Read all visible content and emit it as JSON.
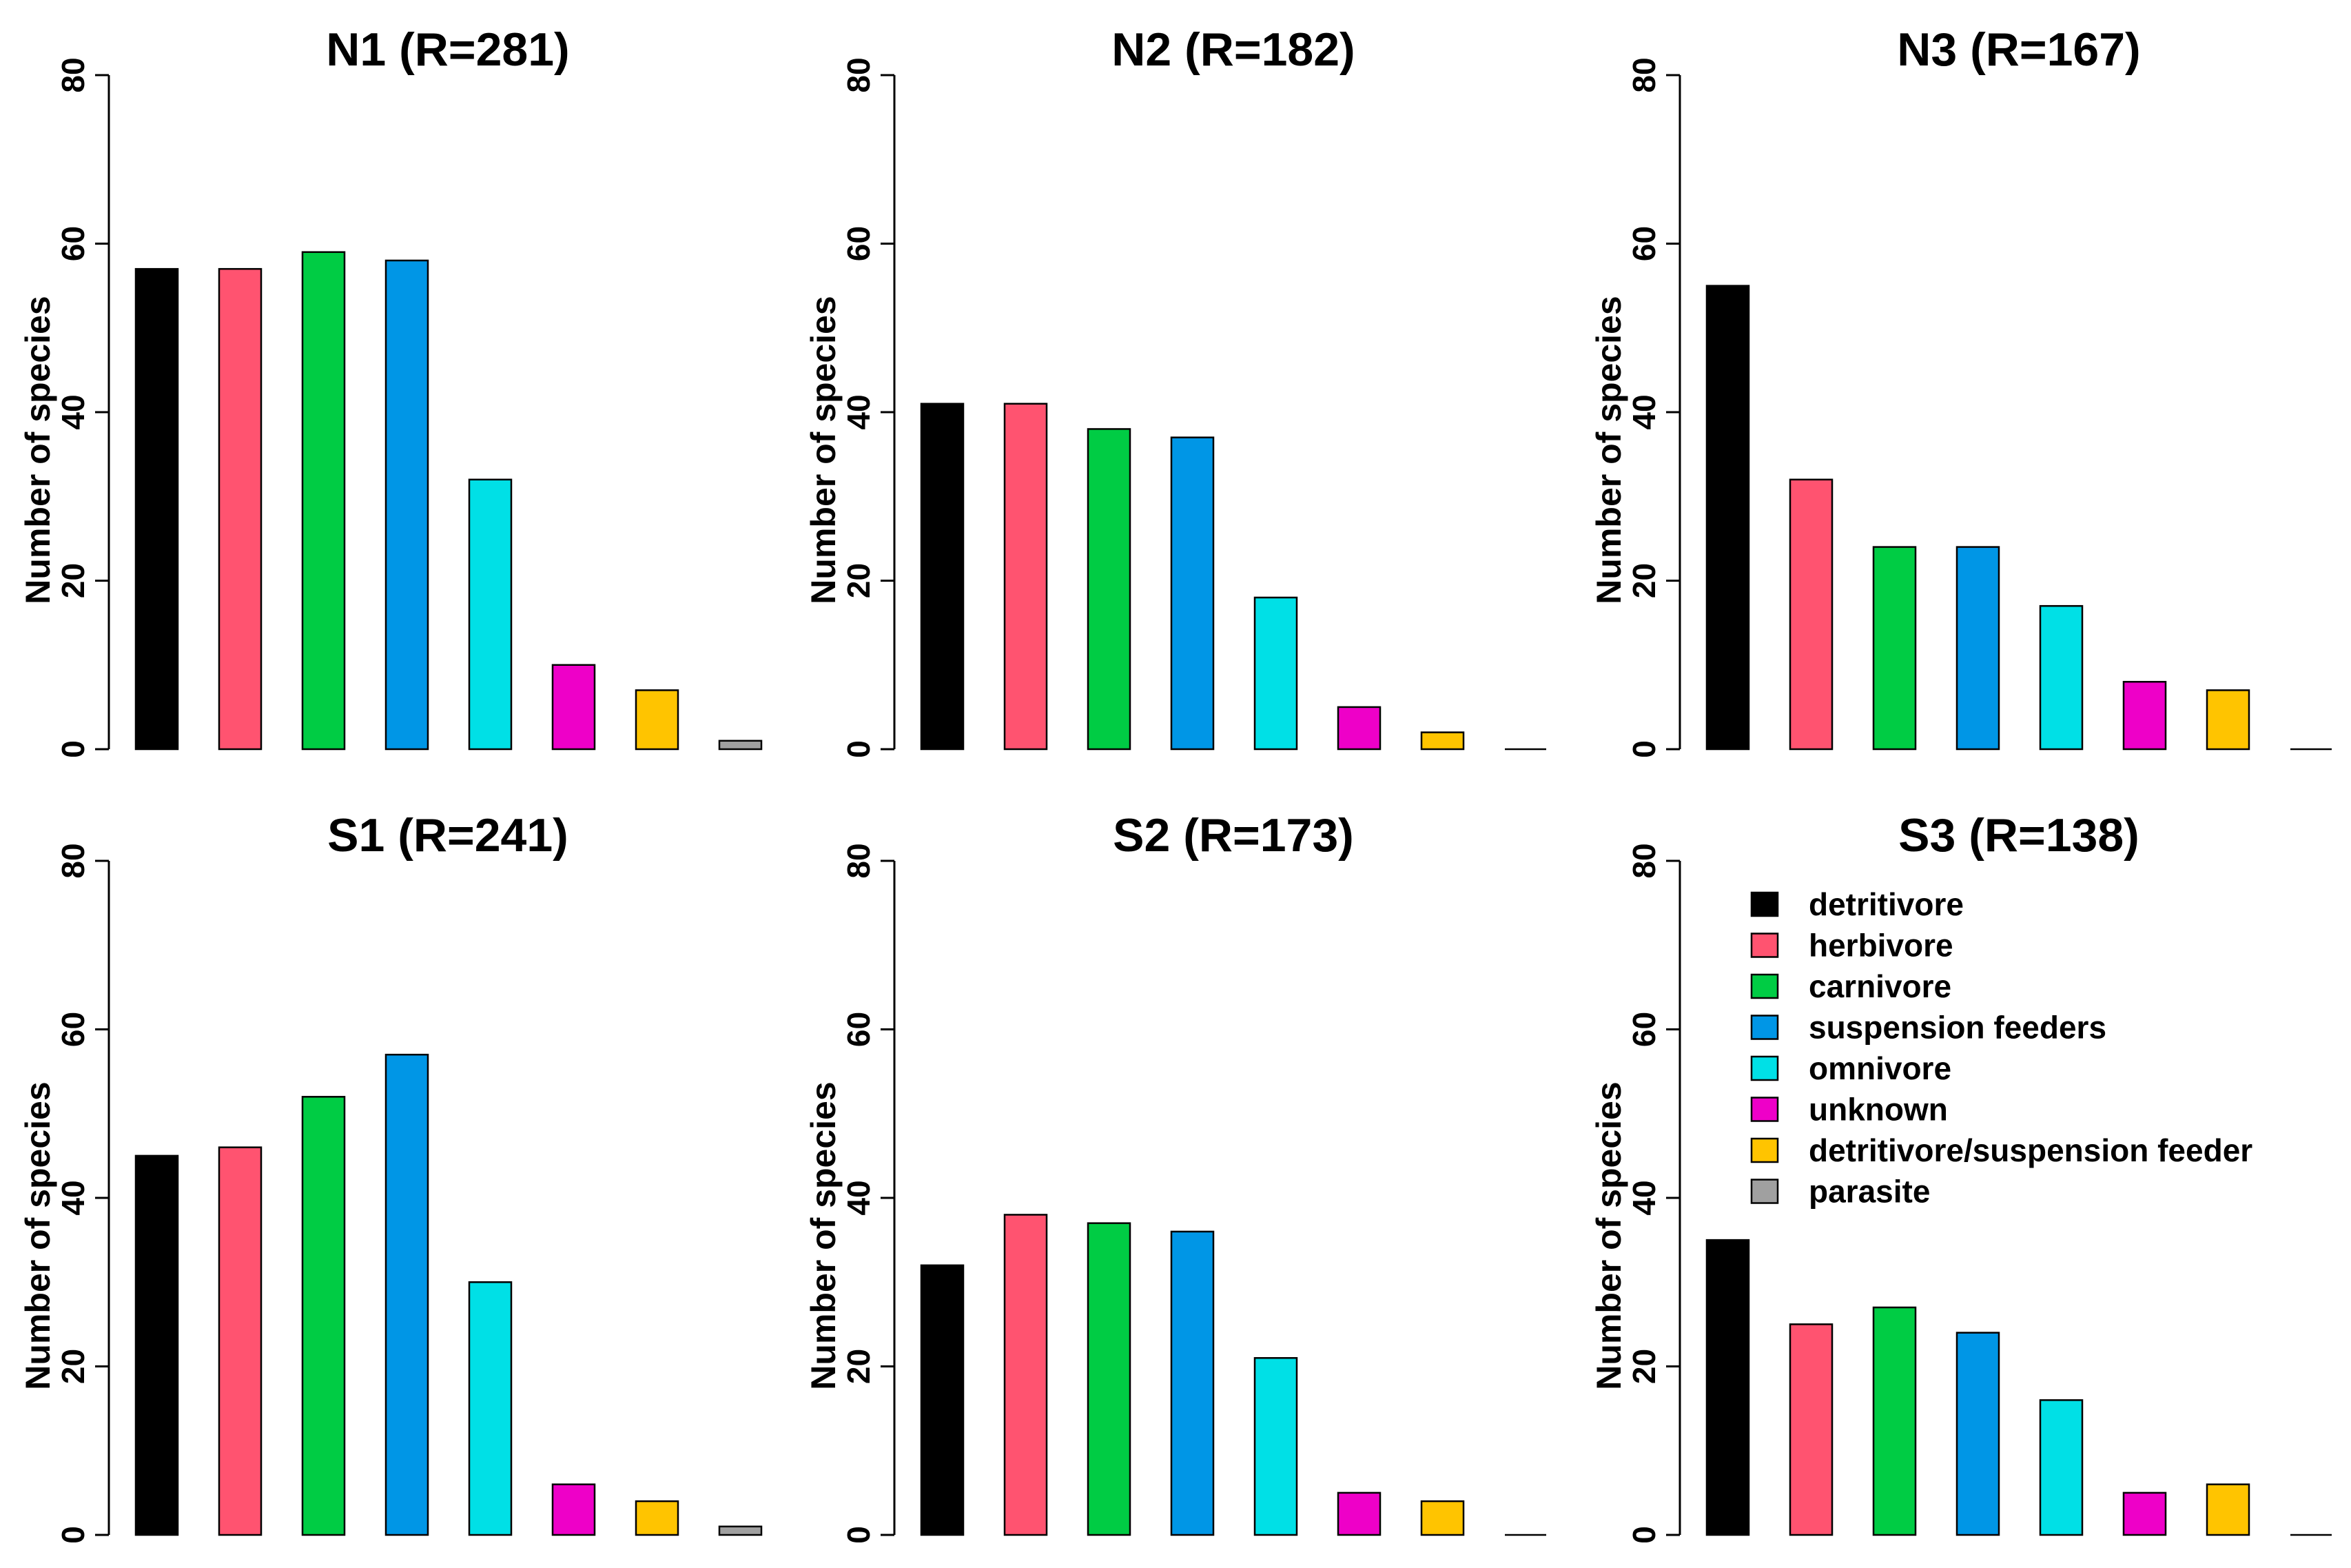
{
  "categories": [
    "detritivore",
    "herbivore",
    "carnivore",
    "suspension feeders",
    "omnivore",
    "unknown",
    "detritivore/suspension feeder",
    "parasite"
  ],
  "colors": [
    "#000000",
    "#FF5370",
    "#00CC44",
    "#0096E6",
    "#00E0E6",
    "#EE00C8",
    "#FFC400",
    "#A0A0A0"
  ],
  "chart_data": [
    {
      "type": "bar",
      "title": "N1 (R=281)",
      "ylabel": "Number of species",
      "ylim": [
        0,
        80
      ],
      "yticks": [
        "0",
        "20",
        "40",
        "60",
        "80"
      ],
      "categories": [
        "detritivore",
        "herbivore",
        "carnivore",
        "suspension feeders",
        "omnivore",
        "unknown",
        "detritivore/suspension feeder",
        "parasite"
      ],
      "values": [
        57,
        57,
        59,
        58,
        32,
        10,
        7,
        1
      ]
    },
    {
      "type": "bar",
      "title": "N2 (R=182)",
      "ylabel": "Number of species",
      "ylim": [
        0,
        80
      ],
      "yticks": [
        "0",
        "20",
        "40",
        "60",
        "80"
      ],
      "categories": [
        "detritivore",
        "herbivore",
        "carnivore",
        "suspension feeders",
        "omnivore",
        "unknown",
        "detritivore/suspension feeder",
        "parasite"
      ],
      "values": [
        41,
        41,
        38,
        37,
        18,
        5,
        2,
        0
      ]
    },
    {
      "type": "bar",
      "title": "N3 (R=167)",
      "ylabel": "Number of species",
      "ylim": [
        0,
        80
      ],
      "yticks": [
        "0",
        "20",
        "40",
        "60",
        "80"
      ],
      "categories": [
        "detritivore",
        "herbivore",
        "carnivore",
        "suspension feeders",
        "omnivore",
        "unknown",
        "detritivore/suspension feeder",
        "parasite"
      ],
      "values": [
        55,
        32,
        24,
        24,
        17,
        8,
        7,
        0
      ]
    },
    {
      "type": "bar",
      "title": "S1 (R=241)",
      "ylabel": "Number of species",
      "ylim": [
        0,
        80
      ],
      "yticks": [
        "0",
        "20",
        "40",
        "60",
        "80"
      ],
      "categories": [
        "detritivore",
        "herbivore",
        "carnivore",
        "suspension feeders",
        "omnivore",
        "unknown",
        "detritivore/suspension feeder",
        "parasite"
      ],
      "values": [
        45,
        46,
        52,
        57,
        30,
        6,
        4,
        1
      ]
    },
    {
      "type": "bar",
      "title": "S2 (R=173)",
      "ylabel": "Number of species",
      "ylim": [
        0,
        80
      ],
      "yticks": [
        "0",
        "20",
        "40",
        "60",
        "80"
      ],
      "categories": [
        "detritivore",
        "herbivore",
        "carnivore",
        "suspension feeders",
        "omnivore",
        "unknown",
        "detritivore/suspension feeder",
        "parasite"
      ],
      "values": [
        32,
        38,
        37,
        36,
        21,
        5,
        4,
        0
      ]
    },
    {
      "type": "bar",
      "title": "S3 (R=138)",
      "ylabel": "Number of species",
      "ylim": [
        0,
        80
      ],
      "yticks": [
        "0",
        "20",
        "40",
        "60",
        "80"
      ],
      "categories": [
        "detritivore",
        "herbivore",
        "carnivore",
        "suspension feeders",
        "omnivore",
        "unknown",
        "detritivore/suspension feeder",
        "parasite"
      ],
      "values": [
        35,
        25,
        27,
        24,
        16,
        5,
        6,
        0
      ],
      "legend": {
        "placement": "top-right",
        "entries": [
          "detritivore",
          "herbivore",
          "carnivore",
          "suspension feeders",
          "omnivore",
          "unknown",
          "detritivore/suspension feeder",
          "parasite"
        ]
      }
    }
  ]
}
